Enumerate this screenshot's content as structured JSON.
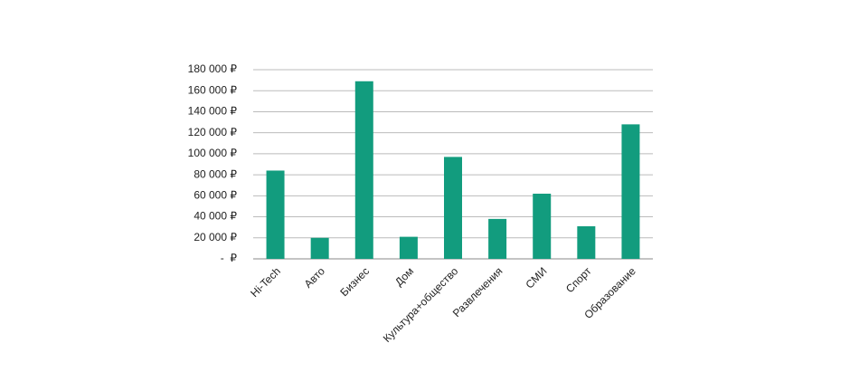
{
  "chart_data": {
    "type": "bar",
    "categories": [
      "Hi-Tech",
      "Авто",
      "Бизнес",
      "Дом",
      "Культура+общество",
      "Развлечения",
      "СМИ",
      "Спорт",
      "Образование"
    ],
    "values": [
      84000,
      20000,
      169000,
      21000,
      97000,
      38000,
      62000,
      31000,
      128000
    ],
    "color": "#129c7e",
    "ylim": [
      0,
      180000
    ],
    "yticks": [
      {
        "value": 0,
        "label": "-  ₽"
      },
      {
        "value": 20000,
        "label": "20 000 ₽"
      },
      {
        "value": 40000,
        "label": "40 000 ₽"
      },
      {
        "value": 60000,
        "label": "60 000 ₽"
      },
      {
        "value": 80000,
        "label": "80 000 ₽"
      },
      {
        "value": 100000,
        "label": "100 000 ₽"
      },
      {
        "value": 120000,
        "label": "120 000 ₽"
      },
      {
        "value": 140000,
        "label": "140 000 ₽"
      },
      {
        "value": 160000,
        "label": "160 000 ₽"
      },
      {
        "value": 180000,
        "label": "180 000 ₽"
      }
    ],
    "grid": true
  }
}
